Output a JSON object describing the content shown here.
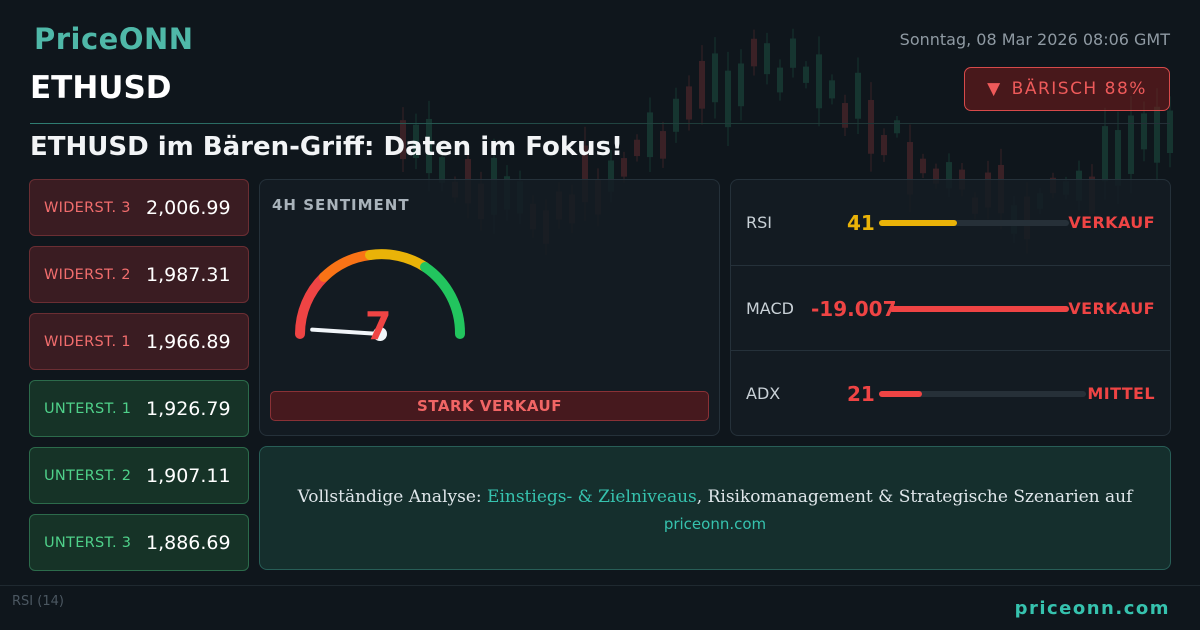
{
  "brand": {
    "logo": "PriceONN",
    "footer_url": "priceonn.com"
  },
  "header": {
    "datetime": "Sonntag, 08 Mar 2026 08:06 GMT",
    "symbol": "ETHUSD",
    "badge_icon": "triangle-down-icon",
    "badge_text": "BÄRISCH 88%",
    "headline": "ETHUSD im Bären-Griff: Daten im Fokus!"
  },
  "levels": [
    {
      "label": "WIDERST. 3",
      "value": "2,006.99",
      "type": "resistance"
    },
    {
      "label": "WIDERST. 2",
      "value": "1,987.31",
      "type": "resistance"
    },
    {
      "label": "WIDERST. 1",
      "value": "1,966.89",
      "type": "resistance"
    },
    {
      "label": "UNTERST. 1",
      "value": "1,926.79",
      "type": "support"
    },
    {
      "label": "UNTERST. 2",
      "value": "1,907.11",
      "type": "support"
    },
    {
      "label": "UNTERST. 3",
      "value": "1,886.69",
      "type": "support"
    }
  ],
  "sentiment": {
    "title": "4H SENTIMENT",
    "score": "7",
    "score_value": 7,
    "score_max": 100,
    "label": "STARK VERKAUF"
  },
  "indicators": [
    {
      "name": "RSI",
      "value": "41",
      "fill_fraction": 0.41,
      "signal": "VERKAUF",
      "value_color": "#eab308",
      "bar_color": "#eab308"
    },
    {
      "name": "MACD",
      "value": "-19.007",
      "fill_fraction": 1.0,
      "signal": "VERKAUF",
      "value_color": "#ef4444",
      "bar_color": "#ef4444"
    },
    {
      "name": "ADX",
      "value": "21",
      "fill_fraction": 0.21,
      "signal": "MITTEL",
      "value_color": "#ef4444",
      "bar_color": "#ef4444"
    }
  ],
  "cta": {
    "text_before": "Vollständige Analyse: ",
    "highlight": "Einstiegs- & Zielniveaus",
    "text_after": ", Risikomanagement & Strategische Szenarien auf",
    "link": "priceonn.com"
  },
  "background": {
    "rsi_label": "RSI",
    "rsi_period": "(14)"
  },
  "colors": {
    "accent": "#36c2ae",
    "bearish": "#ef4444",
    "bullish": "#4fd18a",
    "neutral": "#eab308"
  }
}
